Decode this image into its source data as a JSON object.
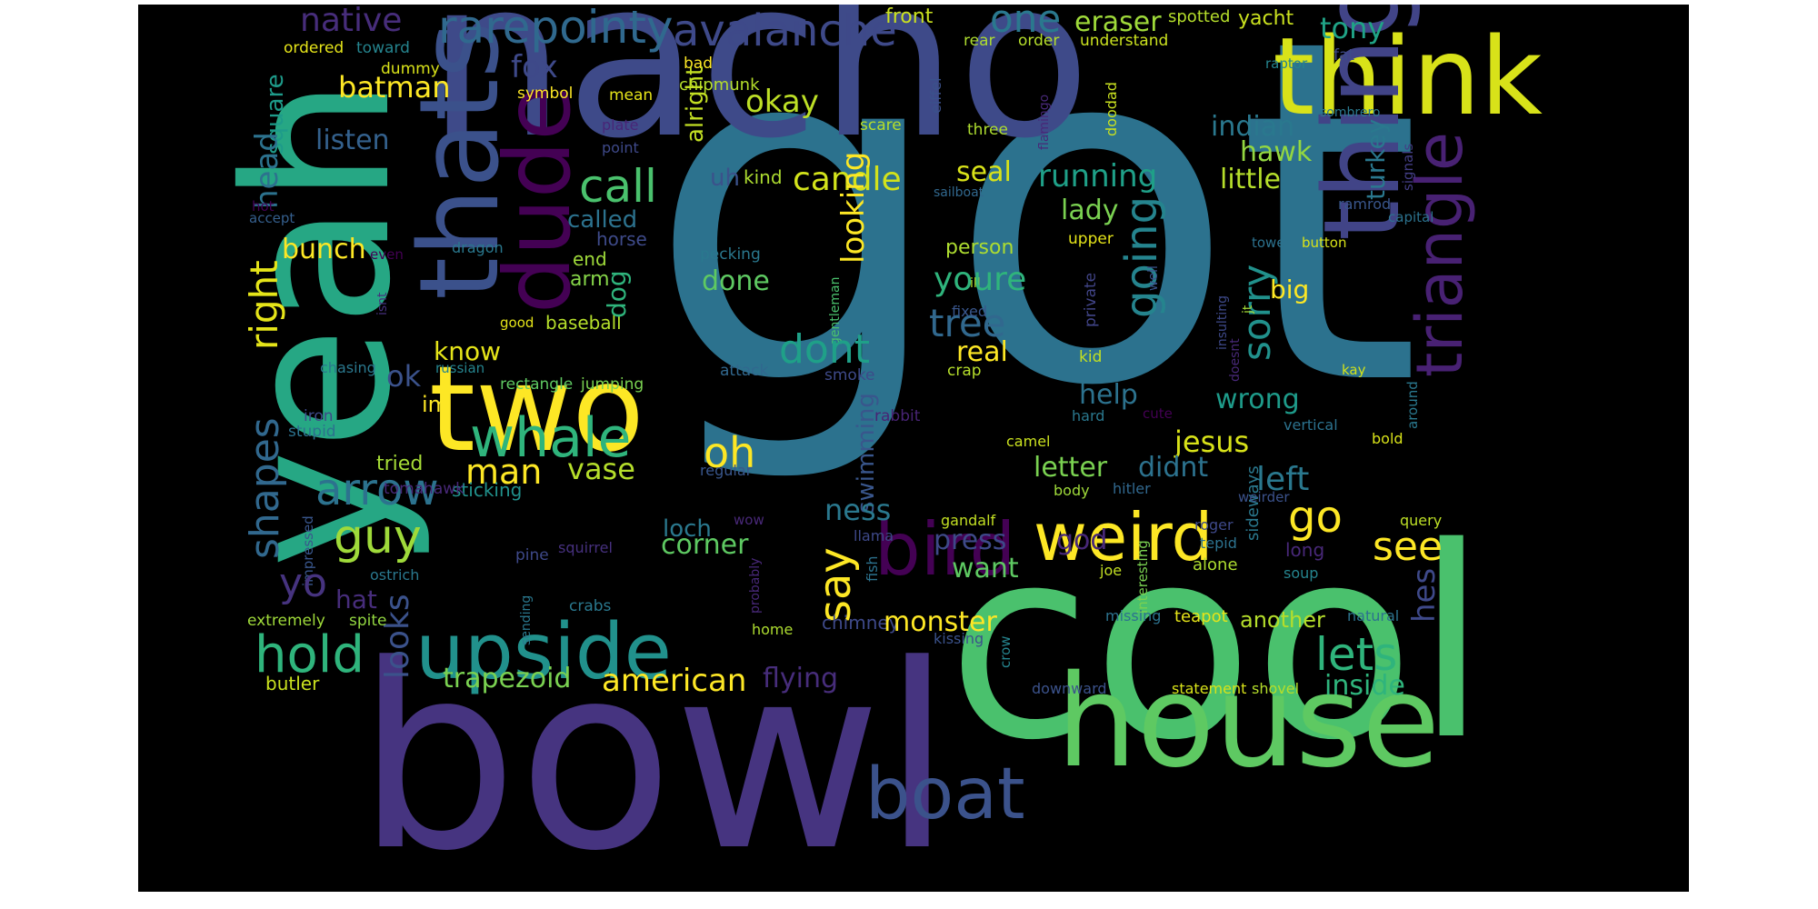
{
  "palette": {
    "background": "#000000",
    "page": "#ffffff"
  },
  "words": [
    {
      "text": "got",
      "color": "#2c728e"
    },
    {
      "text": "nacho",
      "color": "#3e4a89"
    },
    {
      "text": "yeah",
      "color": "#26a784"
    },
    {
      "text": "cool",
      "color": "#4ac16d"
    },
    {
      "text": "bowl",
      "color": "#463480"
    },
    {
      "text": "thats",
      "color": "#3b518b"
    },
    {
      "text": "dude",
      "color": "#440154"
    },
    {
      "text": "think",
      "color": "#d8e219"
    },
    {
      "text": "thing",
      "color": "#414487"
    },
    {
      "text": "triangle",
      "color": "#482173"
    },
    {
      "text": "two",
      "color": "#fde725"
    },
    {
      "text": "house",
      "color": "#5ec962"
    },
    {
      "text": "upside",
      "color": "#21918c"
    },
    {
      "text": "weird",
      "color": "#fde725"
    },
    {
      "text": "bird",
      "color": "#440154"
    },
    {
      "text": "boat",
      "color": "#3b528b"
    },
    {
      "text": "whale",
      "color": "#2fb47c"
    },
    {
      "text": "rarepointy",
      "color": "#30698e"
    },
    {
      "text": "avalanche",
      "color": "#3e4989"
    },
    {
      "text": "one",
      "color": "#2a788e"
    },
    {
      "text": "eraser",
      "color": "#9fda3a"
    },
    {
      "text": "spotted",
      "color": "#b5de2b"
    },
    {
      "text": "yacht",
      "color": "#cae11f"
    },
    {
      "text": "tony",
      "color": "#20a386"
    },
    {
      "text": "native",
      "color": "#472d7b"
    },
    {
      "text": "batman",
      "color": "#fde725"
    },
    {
      "text": "fox",
      "color": "#3e4989"
    },
    {
      "text": "front",
      "color": "#cae11f"
    },
    {
      "text": "ordered",
      "color": "#e5e419"
    },
    {
      "text": "toward",
      "color": "#25848e"
    },
    {
      "text": "square",
      "color": "#1e9b8a"
    },
    {
      "text": "head",
      "color": "#2c728e"
    },
    {
      "text": "listen",
      "color": "#34618d"
    },
    {
      "text": "dummy",
      "color": "#d8e219"
    },
    {
      "text": "symbol",
      "color": "#fde725"
    },
    {
      "text": "bad",
      "color": "#fde725"
    },
    {
      "text": "chipmunk",
      "color": "#b5de2b"
    },
    {
      "text": "mean",
      "color": "#e5e419"
    },
    {
      "text": "eiffel",
      "color": "#3b518b"
    },
    {
      "text": "rear",
      "color": "#addc30"
    },
    {
      "text": "order",
      "color": "#b5de2b"
    },
    {
      "text": "understand",
      "color": "#cae11f"
    },
    {
      "text": "raptor",
      "color": "#25848e"
    },
    {
      "text": "fat",
      "color": "#3e4a89"
    },
    {
      "text": "okay",
      "color": "#bddf26"
    },
    {
      "text": "alright",
      "color": "#c2df23"
    },
    {
      "text": "call",
      "color": "#4ac16d"
    },
    {
      "text": "candle",
      "color": "#d2e21b"
    },
    {
      "text": "seal",
      "color": "#d8e219"
    },
    {
      "text": "running",
      "color": "#1fa088"
    },
    {
      "text": "indian",
      "color": "#2a788e"
    },
    {
      "text": "hawk",
      "color": "#93d741"
    },
    {
      "text": "little",
      "color": "#b5de2b"
    },
    {
      "text": "turkey",
      "color": "#2a788e"
    },
    {
      "text": "sombrero",
      "color": "#2a788e"
    },
    {
      "text": "signals",
      "color": "#433e85"
    },
    {
      "text": "plate",
      "color": "#482677"
    },
    {
      "text": "point",
      "color": "#3e4989"
    },
    {
      "text": "scare",
      "color": "#b5de2b"
    },
    {
      "text": "three",
      "color": "#addc30"
    },
    {
      "text": "flamingo",
      "color": "#482878"
    },
    {
      "text": "doodad",
      "color": "#c8e020"
    },
    {
      "text": "uh",
      "color": "#3b528b"
    },
    {
      "text": "kind",
      "color": "#addc30"
    },
    {
      "text": "called",
      "color": "#2c728e"
    },
    {
      "text": "sailboat",
      "color": "#31688e"
    },
    {
      "text": "lady",
      "color": "#7ad151"
    },
    {
      "text": "ramrod",
      "color": "#39568c"
    },
    {
      "text": "capital",
      "color": "#2c728e"
    },
    {
      "text": "bunch",
      "color": "#fde725"
    },
    {
      "text": "hot",
      "color": "#440154"
    },
    {
      "text": "accept",
      "color": "#355f8d"
    },
    {
      "text": "even",
      "color": "#440154"
    },
    {
      "text": "horse",
      "color": "#3e4a89"
    },
    {
      "text": "dragon",
      "color": "#2a788e"
    },
    {
      "text": "end",
      "color": "#9fda3a"
    },
    {
      "text": "arm",
      "color": "#86d549"
    },
    {
      "text": "pecking",
      "color": "#2a788e"
    },
    {
      "text": "person",
      "color": "#addc30"
    },
    {
      "text": "upper",
      "color": "#e5e419"
    },
    {
      "text": "tower",
      "color": "#2c728e"
    },
    {
      "text": "button",
      "color": "#d8e219"
    },
    {
      "text": "right",
      "color": "#e5e419"
    },
    {
      "text": "done",
      "color": "#5ec962"
    },
    {
      "text": "looking",
      "color": "#fde725"
    },
    {
      "text": "gentleman",
      "color": "#4ac16d"
    },
    {
      "text": "ill",
      "color": "#b5de2b"
    },
    {
      "text": "youre",
      "color": "#2fb47c"
    },
    {
      "text": "going",
      "color": "#25848e"
    },
    {
      "text": "private",
      "color": "#414487"
    },
    {
      "text": "sorry",
      "color": "#21918c"
    },
    {
      "text": "big",
      "color": "#fde725"
    },
    {
      "text": "tree",
      "color": "#31688e"
    },
    {
      "text": "fixed",
      "color": "#39568c"
    },
    {
      "text": "well",
      "color": "#3b528b"
    },
    {
      "text": "isnt",
      "color": "#46307e"
    },
    {
      "text": "good",
      "color": "#e5e419"
    },
    {
      "text": "baseball",
      "color": "#b5de2b"
    },
    {
      "text": "dog",
      "color": "#2fb47c"
    },
    {
      "text": "insulting",
      "color": "#3e4989"
    },
    {
      "text": "doesnt",
      "color": "#482878"
    },
    {
      "text": "jt",
      "color": "#a5db36"
    },
    {
      "text": "kay",
      "color": "#d2e21b"
    },
    {
      "text": "dont",
      "color": "#1fa088"
    },
    {
      "text": "real",
      "color": "#fde725"
    },
    {
      "text": "kid",
      "color": "#c2df23"
    },
    {
      "text": "know",
      "color": "#e5e419"
    },
    {
      "text": "ok",
      "color": "#3b528b"
    },
    {
      "text": "shapes",
      "color": "#31688e"
    },
    {
      "text": "chasing",
      "color": "#2a788e"
    },
    {
      "text": "russian",
      "color": "#25848e"
    },
    {
      "text": "rectangle",
      "color": "#5ec962"
    },
    {
      "text": "jumping",
      "color": "#7ad151"
    },
    {
      "text": "attack",
      "color": "#31688e"
    },
    {
      "text": "smoke",
      "color": "#3e4a89"
    },
    {
      "text": "crap",
      "color": "#b5de2b"
    },
    {
      "text": "around",
      "color": "#2a788e"
    },
    {
      "text": "iron",
      "color": "#3e4a89"
    },
    {
      "text": "stupid",
      "color": "#2c728e"
    },
    {
      "text": "im",
      "color": "#fde725"
    },
    {
      "text": "help",
      "color": "#2c728e"
    },
    {
      "text": "hard",
      "color": "#2a788e"
    },
    {
      "text": "cute",
      "color": "#440154"
    },
    {
      "text": "wrong",
      "color": "#1e9b8a"
    },
    {
      "text": "vertical",
      "color": "#2c728e"
    },
    {
      "text": "bold",
      "color": "#d8e219"
    },
    {
      "text": "rabbit",
      "color": "#482475"
    },
    {
      "text": "oh",
      "color": "#fde725"
    },
    {
      "text": "jesus",
      "color": "#d8e219"
    },
    {
      "text": "camel",
      "color": "#cae11f"
    },
    {
      "text": "sideways",
      "color": "#2a788e"
    },
    {
      "text": "tried",
      "color": "#a5db36"
    },
    {
      "text": "arrow",
      "color": "#2c728e"
    },
    {
      "text": "man",
      "color": "#fde725"
    },
    {
      "text": "vase",
      "color": "#b5de2b"
    },
    {
      "text": "swimming",
      "color": "#39568c"
    },
    {
      "text": "letter",
      "color": "#7ad151"
    },
    {
      "text": "didnt",
      "color": "#2c728e"
    },
    {
      "text": "left",
      "color": "#2a788e"
    },
    {
      "text": "regular",
      "color": "#39568c"
    },
    {
      "text": "body",
      "color": "#9fda3a"
    },
    {
      "text": "sticking",
      "color": "#21918c"
    },
    {
      "text": "hitler",
      "color": "#31688e"
    },
    {
      "text": "weirder",
      "color": "#3b528b"
    },
    {
      "text": "guy",
      "color": "#9fda3a"
    },
    {
      "text": "impressed",
      "color": "#39568c"
    },
    {
      "text": "tomahawk",
      "color": "#482878"
    },
    {
      "text": "ness",
      "color": "#2a788e"
    },
    {
      "text": "go",
      "color": "#fde725"
    },
    {
      "text": "loch",
      "color": "#2a788e"
    },
    {
      "text": "corner",
      "color": "#5ec962"
    },
    {
      "text": "wow",
      "color": "#482878"
    },
    {
      "text": "squirrel",
      "color": "#46307e"
    },
    {
      "text": "gandalf",
      "color": "#c2df23"
    },
    {
      "text": "llama",
      "color": "#3e4989"
    },
    {
      "text": "press",
      "color": "#3e4989"
    },
    {
      "text": "god",
      "color": "#482878"
    },
    {
      "text": "interesting",
      "color": "#7ad151"
    },
    {
      "text": "roger",
      "color": "#3e4989"
    },
    {
      "text": "tepid",
      "color": "#2c728e"
    },
    {
      "text": "see",
      "color": "#fde725"
    },
    {
      "text": "query",
      "color": "#bddf26"
    },
    {
      "text": "yo",
      "color": "#46337f"
    },
    {
      "text": "pine",
      "color": "#3e4989"
    },
    {
      "text": "ostrich",
      "color": "#2a788e"
    },
    {
      "text": "hat",
      "color": "#472d7b"
    },
    {
      "text": "say",
      "color": "#fde725"
    },
    {
      "text": "want",
      "color": "#5ec962"
    },
    {
      "text": "long",
      "color": "#482878"
    },
    {
      "text": "probably",
      "color": "#482878"
    },
    {
      "text": "fish",
      "color": "#2c728e"
    },
    {
      "text": "alone",
      "color": "#addc30"
    },
    {
      "text": "soup",
      "color": "#25848e"
    },
    {
      "text": "hes",
      "color": "#3e4989"
    },
    {
      "text": "hold",
      "color": "#2fb47c"
    },
    {
      "text": "looks",
      "color": "#3b528b"
    },
    {
      "text": "crabs",
      "color": "#2a788e"
    },
    {
      "text": "sending",
      "color": "#2a788e"
    },
    {
      "text": "joe",
      "color": "#c2df23"
    },
    {
      "text": "missing",
      "color": "#2c728e"
    },
    {
      "text": "natural",
      "color": "#2c728e"
    },
    {
      "text": "extremely",
      "color": "#9fda3a"
    },
    {
      "text": "spite",
      "color": "#93d741"
    },
    {
      "text": "chimney",
      "color": "#3e4989"
    },
    {
      "text": "monster",
      "color": "#fde725"
    },
    {
      "text": "teapot",
      "color": "#e5e419"
    },
    {
      "text": "another",
      "color": "#b5de2b"
    },
    {
      "text": "lets",
      "color": "#2fb47c"
    },
    {
      "text": "home",
      "color": "#addc30"
    },
    {
      "text": "kissing",
      "color": "#3b528b"
    },
    {
      "text": "butler",
      "color": "#cae11f"
    },
    {
      "text": "trapezoid",
      "color": "#7ad151"
    },
    {
      "text": "american",
      "color": "#fde725"
    },
    {
      "text": "flying",
      "color": "#472d7b"
    },
    {
      "text": "crow",
      "color": "#25848e"
    },
    {
      "text": "downward",
      "color": "#3b528b"
    },
    {
      "text": "statement",
      "color": "#d8e219"
    },
    {
      "text": "shovel",
      "color": "#b5de2b"
    },
    {
      "text": "inside",
      "color": "#2fb47c"
    }
  ]
}
